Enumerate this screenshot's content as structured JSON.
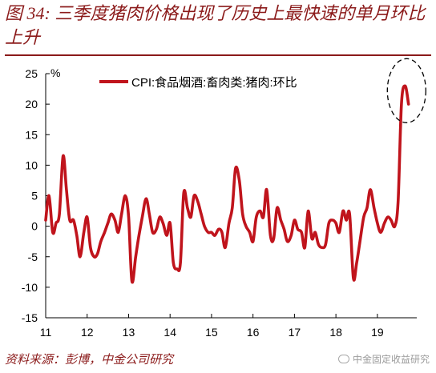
{
  "header": {
    "title": "图 34: 三季度猪肉价格出现了历史上最快速的单月环比上升"
  },
  "footer": {
    "source": "资料来源：彭博，中金公司研究",
    "watermark": "中金固定收益研究"
  },
  "colors": {
    "line": "#c0141c",
    "title": "#8b1a1a"
  },
  "chart_data": {
    "type": "line",
    "title": "",
    "xlabel": "",
    "ylabel": "%",
    "ylim": [
      -15,
      25
    ],
    "yticks": [
      -15,
      -10,
      -5,
      0,
      5,
      10,
      15,
      20,
      25
    ],
    "xlim": [
      2011.0,
      2019.95
    ],
    "xticks": [
      {
        "label": "11",
        "x": 2011
      },
      {
        "label": "12",
        "x": 2012
      },
      {
        "label": "13",
        "x": 2013
      },
      {
        "label": "14",
        "x": 2014
      },
      {
        "label": "15",
        "x": 2015
      },
      {
        "label": "16",
        "x": 2016
      },
      {
        "label": "17",
        "x": 2017
      },
      {
        "label": "18",
        "x": 2018
      },
      {
        "label": "19",
        "x": 2019
      }
    ],
    "grid": false,
    "legend_position": "top-center",
    "annotation": "dashed ellipse around the 2019 peak",
    "series": [
      {
        "name": "CPI:食品烟酒:畜肉类:猪肉:环比",
        "x": [
          2011.0,
          2011.08,
          2011.17,
          2011.25,
          2011.33,
          2011.42,
          2011.5,
          2011.58,
          2011.67,
          2011.75,
          2011.83,
          2011.92,
          2012.0,
          2012.08,
          2012.17,
          2012.25,
          2012.33,
          2012.42,
          2012.5,
          2012.58,
          2012.67,
          2012.75,
          2012.83,
          2012.92,
          2013.0,
          2013.08,
          2013.17,
          2013.25,
          2013.33,
          2013.42,
          2013.5,
          2013.58,
          2013.67,
          2013.75,
          2013.83,
          2013.92,
          2014.0,
          2014.08,
          2014.17,
          2014.25,
          2014.33,
          2014.42,
          2014.5,
          2014.58,
          2014.67,
          2014.75,
          2014.83,
          2014.92,
          2015.0,
          2015.08,
          2015.17,
          2015.25,
          2015.33,
          2015.42,
          2015.5,
          2015.58,
          2015.67,
          2015.75,
          2015.83,
          2015.92,
          2016.0,
          2016.08,
          2016.17,
          2016.25,
          2016.33,
          2016.42,
          2016.5,
          2016.58,
          2016.67,
          2016.75,
          2016.83,
          2016.92,
          2017.0,
          2017.08,
          2017.17,
          2017.25,
          2017.33,
          2017.42,
          2017.5,
          2017.58,
          2017.67,
          2017.75,
          2017.83,
          2017.92,
          2018.0,
          2018.08,
          2018.17,
          2018.25,
          2018.33,
          2018.42,
          2018.5,
          2018.58,
          2018.67,
          2018.75,
          2018.83,
          2018.92,
          2019.0,
          2019.08,
          2019.17,
          2019.25,
          2019.33,
          2019.42,
          2019.5,
          2019.58,
          2019.67,
          2019.75
        ],
        "values": [
          1.0,
          5.0,
          -1.0,
          0.5,
          2.0,
          11.5,
          6.0,
          1.0,
          1.0,
          -1.5,
          -5.0,
          -1.0,
          1.5,
          -3.5,
          -5.0,
          -4.5,
          -2.5,
          -1.0,
          0.5,
          2.0,
          1.0,
          -1.0,
          2.0,
          5.0,
          1.5,
          -9.0,
          -5.0,
          -1.5,
          1.5,
          4.5,
          2.0,
          -1.0,
          -0.5,
          1.5,
          0.5,
          -1.5,
          0.5,
          -6.0,
          -7.0,
          -6.0,
          5.5,
          3.0,
          1.5,
          5.0,
          4.0,
          2.0,
          0.0,
          -1.0,
          -1.0,
          -1.5,
          -0.5,
          -1.0,
          -3.5,
          0.5,
          3.0,
          9.5,
          7.5,
          2.0,
          0.0,
          -1.0,
          -2.5,
          1.5,
          2.5,
          1.5,
          6.0,
          -1.5,
          -2.0,
          3.0,
          1.0,
          -0.5,
          -2.5,
          -1.5,
          1.0,
          -0.5,
          -1.0,
          -3.5,
          2.5,
          -2.0,
          -1.0,
          -3.0,
          -3.5,
          -3.0,
          0.5,
          1.0,
          0.5,
          -1.0,
          2.5,
          1.0,
          2.0,
          -8.5,
          -6.0,
          -2.5,
          1.5,
          3.0,
          6.0,
          3.0,
          0.5,
          -1.0,
          0.5,
          1.5,
          1.0,
          0.0,
          4.0,
          20.0,
          23.0,
          20.0
        ]
      }
    ]
  }
}
